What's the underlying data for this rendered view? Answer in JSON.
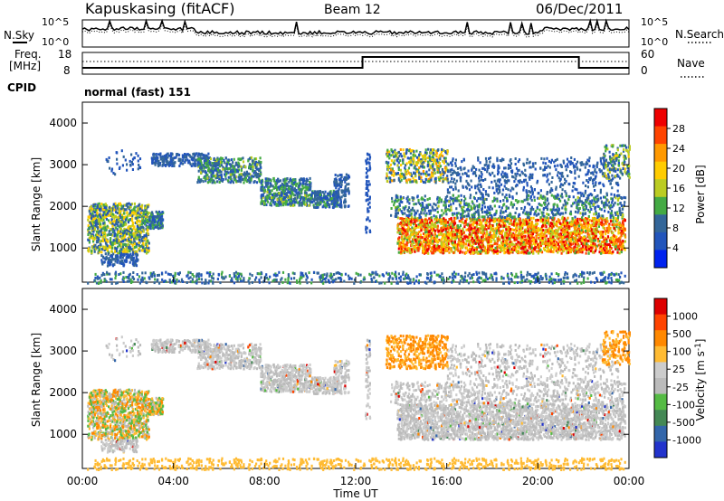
{
  "header": {
    "station": "Kapuskasing (fitACF)",
    "beam": "Beam 12",
    "date": "06/Dec/2011"
  },
  "noise_panel": {
    "left_label": "N.Sky",
    "right_label": "N.Search",
    "tick_hi": "10^5",
    "tick_lo": "10^0",
    "right_tick_hi": "10^5",
    "right_tick_lo": "10^0"
  },
  "freq_panel": {
    "left_label_1": "Freq.",
    "left_label_2": "[MHz]",
    "tick_hi": "18",
    "tick_lo": "8",
    "right_label": "Nave",
    "right_tick_hi": "60",
    "right_tick_lo": "0"
  },
  "cpid": {
    "label": "CPID",
    "value": "normal (fast) 151"
  },
  "colors": {
    "power_scale": [
      "#0022ee",
      "#2255bb",
      "#336699",
      "#44aa44",
      "#bbcc22",
      "#ffcc00",
      "#ff9900",
      "#ff4400",
      "#ee0000"
    ],
    "velocity_scale": [
      "#2233cc",
      "#3366aa",
      "#448855",
      "#55bb44",
      "#bbbbbb",
      "#cccccc",
      "#ffbb33",
      "#ff8800",
      "#ff4400",
      "#dd0000"
    ]
  },
  "chart_data": [
    {
      "type": "heatmap",
      "name": "power",
      "xlabel": "Time UT",
      "ylabel": "Slant Range [km]",
      "x_range_hours": [
        0,
        24
      ],
      "ylim": [
        180,
        4500
      ],
      "yticks": [
        "1000",
        "2000",
        "3000",
        "4000"
      ],
      "colorbar": {
        "label": "Power [dB]",
        "ticks": [
          "4",
          "8",
          "12",
          "16",
          "20",
          "24",
          "28"
        ],
        "range": [
          0,
          30
        ]
      }
    },
    {
      "type": "heatmap",
      "name": "velocity",
      "xlabel": "Time UT",
      "ylabel": "Slant Range [km]",
      "x_range_hours": [
        0,
        24
      ],
      "ylim": [
        180,
        4500
      ],
      "yticks": [
        "1000",
        "2000",
        "3000",
        "4000"
      ],
      "xticks": [
        "00:00",
        "04:00",
        "08:00",
        "12:00",
        "16:00",
        "20:00",
        "00:00"
      ],
      "colorbar": {
        "label": "Velocity [m s-1]",
        "ticks": [
          "1000",
          "500",
          "100",
          "25",
          "-25",
          "-100",
          "-500",
          "-1000"
        ]
      }
    }
  ]
}
